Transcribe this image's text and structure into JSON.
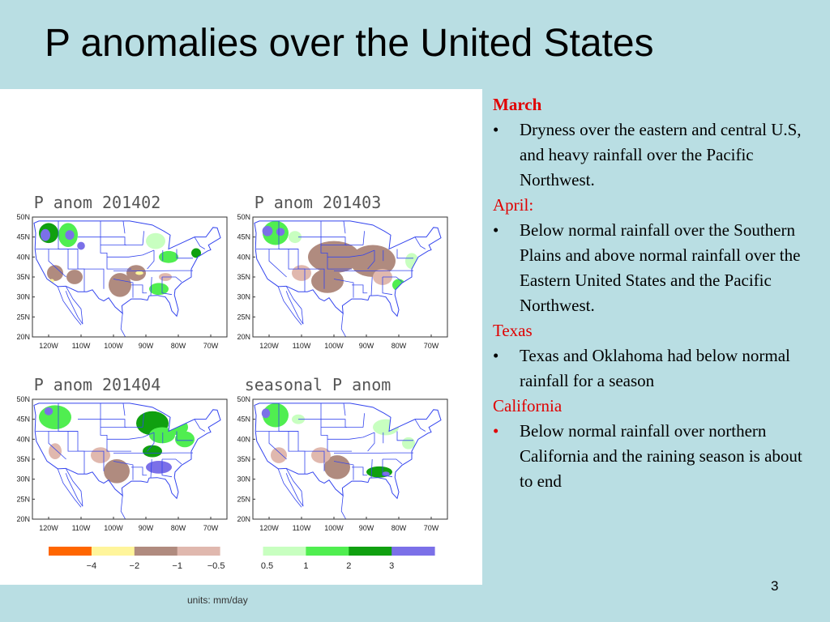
{
  "title": "P anomalies over the United States",
  "maps": [
    {
      "title": "P anom 201402"
    },
    {
      "title": "P anom 201403"
    },
    {
      "title": "P anom 201404"
    },
    {
      "title": "seasonal P anom"
    }
  ],
  "lat_ticks": [
    "50N",
    "45N",
    "40N",
    "35N",
    "30N",
    "25N",
    "20N"
  ],
  "lon_ticks": [
    "120W",
    "110W",
    "100W",
    "90W",
    "80W",
    "70W"
  ],
  "units": "units: mm/day",
  "colorbar": {
    "colors": [
      "#ff6600",
      "#fff59b",
      "#b08b7f",
      "#e0b8ae",
      "#ffffff",
      "#c8ffc0",
      "#50ee50",
      "#10a010",
      "#7b70e8"
    ],
    "labels": [
      "−4",
      "−2",
      "−1",
      "−0.5",
      "0.5",
      "1",
      "2",
      "3"
    ]
  },
  "notes": [
    {
      "heading": "March",
      "bullets": [
        "Dryness over the eastern and central  U.S, and heavy rainfall over the Pacific Northwest."
      ]
    },
    {
      "heading": "April:",
      "bullets": [
        "Below normal rainfall over the Southern Plains and  above normal rainfall over the Eastern United States and the Pacific Northwest."
      ]
    },
    {
      "heading": "Texas",
      "bullets": [
        " Texas and Oklahoma had below normal rainfall for a season"
      ]
    },
    {
      "heading": "California",
      "bullets": [
        " Below normal rainfall over northern California and  the raining season is about to end"
      ]
    }
  ],
  "page_number": "3"
}
